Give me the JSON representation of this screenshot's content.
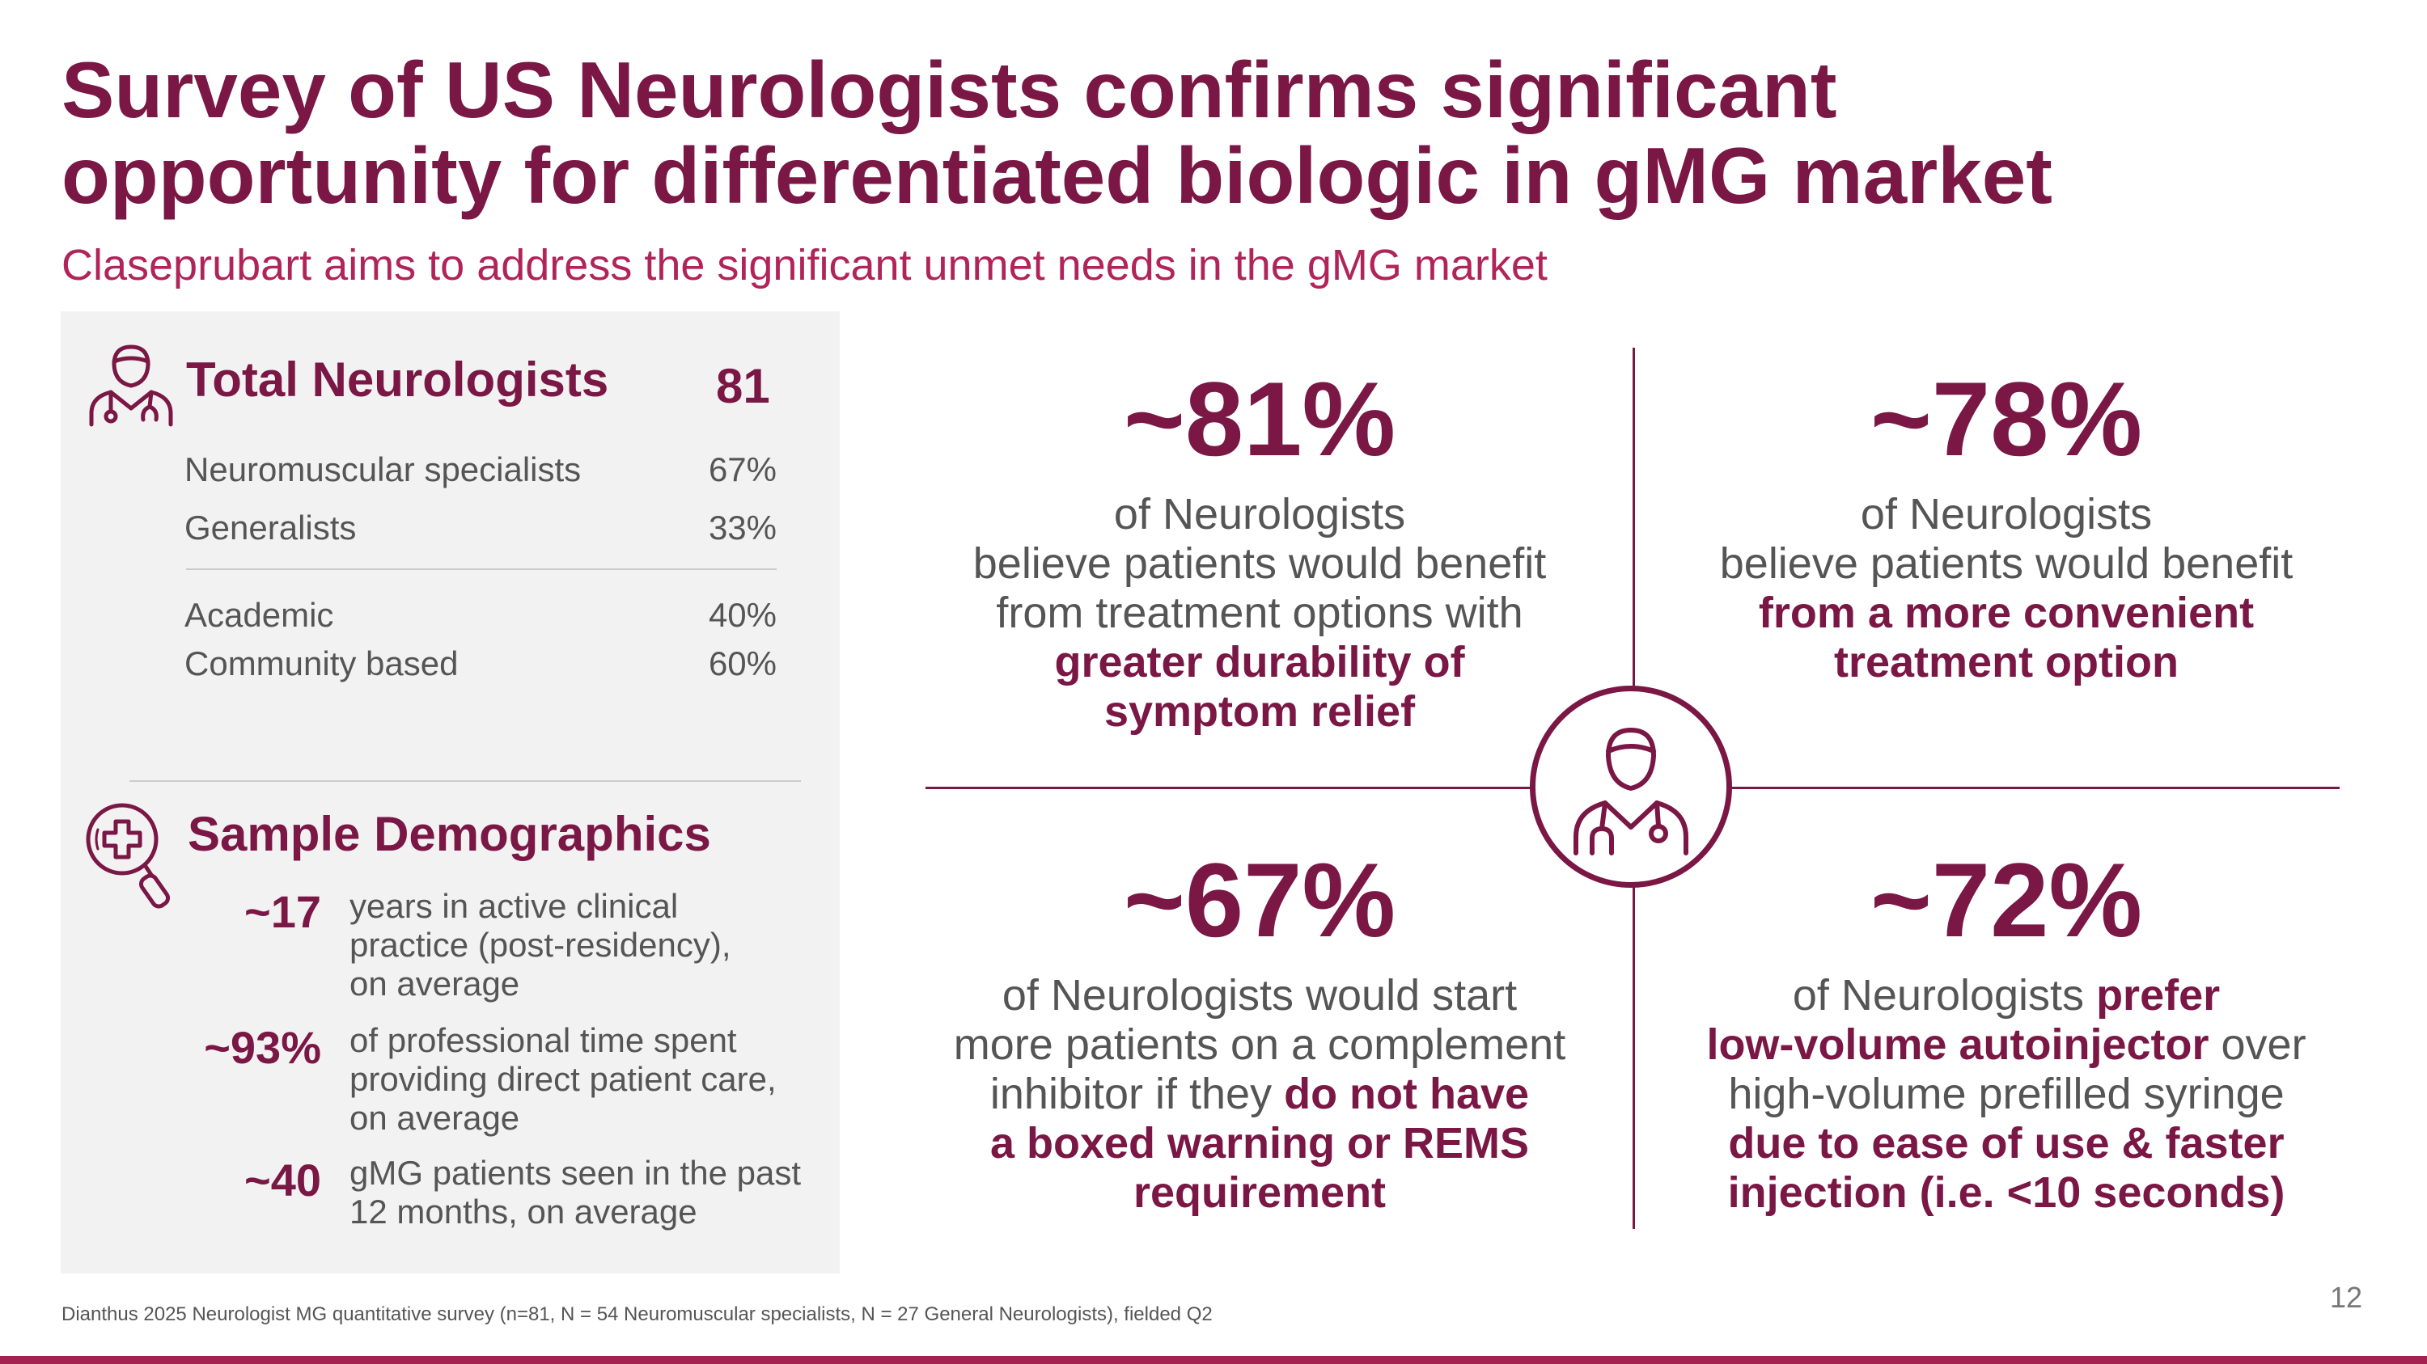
{
  "header": {
    "title_line1": "Survey of US Neurologists confirms significant",
    "title_line2": "opportunity for differentiated biologic in gMG market",
    "subtitle": "Claseprubart aims to address the significant unmet needs in the gMG market"
  },
  "panel": {
    "total": {
      "label": "Total Neurologists",
      "value": "81",
      "rows": [
        {
          "label": "Neuromuscular specialists",
          "value": "67%"
        },
        {
          "label": "Generalists",
          "value": "33%"
        },
        {
          "label": "Academic",
          "value": "40%"
        },
        {
          "label": "Community based",
          "value": "60%"
        }
      ]
    },
    "demographics": {
      "label": "Sample Demographics",
      "items": [
        {
          "value": "~17",
          "line1": "years in active clinical",
          "line2": "practice (post-residency),",
          "line3": "on average"
        },
        {
          "value": "~93%",
          "line1": "of professional time spent",
          "line2": "providing direct patient care,",
          "line3": "on average"
        },
        {
          "value": "~40",
          "line1": "gMG patients seen in the past",
          "line2": "12 months, on average"
        }
      ]
    }
  },
  "quadrants": {
    "q1": {
      "stat": "~81%",
      "l1": "of Neurologists",
      "l2": "believe patients would benefit",
      "l3": "from treatment options with",
      "e1": "greater durability of",
      "e2": "symptom relief"
    },
    "q2": {
      "stat": "~78%",
      "l1": "of Neurologists",
      "l2": "believe patients would benefit",
      "e1": "from a more convenient",
      "e2": "treatment option"
    },
    "q3": {
      "stat": "~67%",
      "l1": "of Neurologists would start",
      "l2": "more patients on a complement",
      "l3a": "inhibitor if they ",
      "e1": "do not have",
      "e2": "a boxed warning or REMS",
      "e3": "requirement"
    },
    "q4": {
      "stat": "~72%",
      "l1a": "of Neurologists ",
      "e1": "prefer",
      "e2": "low-volume autoinjector",
      "l2b": " over",
      "l3": "high-volume prefilled syringe",
      "e3": "due to ease of use & faster",
      "e4": "injection (i.e. <10 seconds)"
    }
  },
  "icons": {
    "doctor": "doctor-icon",
    "search": "medical-search-icon",
    "center": "doctor-stethoscope-icon"
  },
  "colors": {
    "accent": "#7a1745",
    "subtitle": "#b0245a",
    "bar": "#a4224f"
  },
  "footer": {
    "footnote": "Dianthus 2025 Neurologist MG quantitative survey (n=81, N = 54 Neuromuscular specialists, N = 27 General Neurologists), fielded Q2",
    "page": "12"
  }
}
